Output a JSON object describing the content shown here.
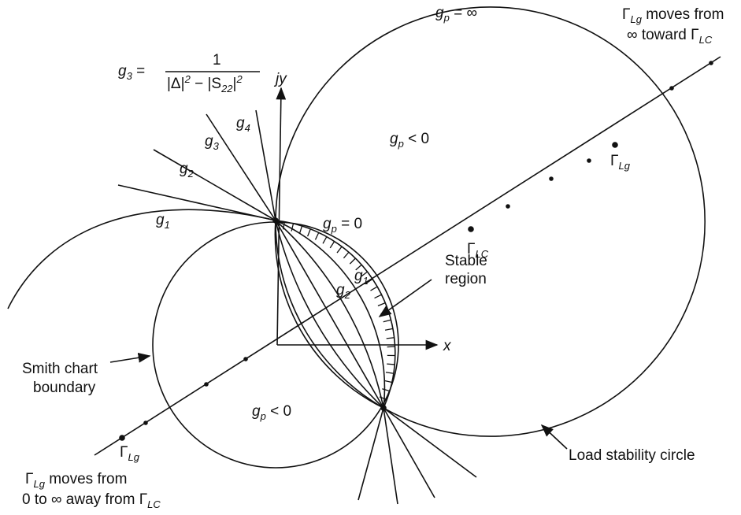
{
  "labels": {
    "gp_inf": [
      "g",
      "p",
      " = ∞"
    ],
    "lg_top_1": [
      "Γ",
      "Lg",
      " moves from"
    ],
    "lg_top_2": [
      "∞ toward Γ",
      "LC"
    ],
    "g3_lhs": [
      "g",
      "3",
      " ="
    ],
    "g3_num": [
      "1"
    ],
    "g3_den": [
      "|Δ|",
      "2",
      " − |S",
      "22",
      "|",
      "2"
    ],
    "jy": [
      "jy"
    ],
    "g4": [
      "g",
      "4"
    ],
    "g3": [
      "g",
      "3"
    ],
    "g2": [
      "g",
      "2"
    ],
    "g1": [
      "g",
      "1"
    ],
    "gp_neg_top": [
      "g",
      "p",
      " < 0"
    ],
    "lg_upper": [
      "Γ",
      "Lg"
    ],
    "gp_zero": [
      "g",
      "p",
      " = 0"
    ],
    "lc_mid": [
      "Γ",
      "LC"
    ],
    "g1_in": [
      "g",
      "1"
    ],
    "g2_in": [
      "g",
      "2"
    ],
    "stable": [
      "Stable"
    ],
    "region": [
      "region"
    ],
    "x": [
      "x"
    ],
    "smith_1": [
      "Smith chart"
    ],
    "smith_2": [
      "boundary"
    ],
    "gp_neg_bot": [
      "g",
      "p",
      " < 0"
    ],
    "lg_lower": [
      "Γ",
      "Lg"
    ],
    "load": [
      "Load stability circle"
    ],
    "lg_bot_1": [
      "Γ",
      "Lg",
      " moves from"
    ],
    "lg_bot_2": [
      "0 to ∞ away from Γ",
      "LC"
    ]
  }
}
